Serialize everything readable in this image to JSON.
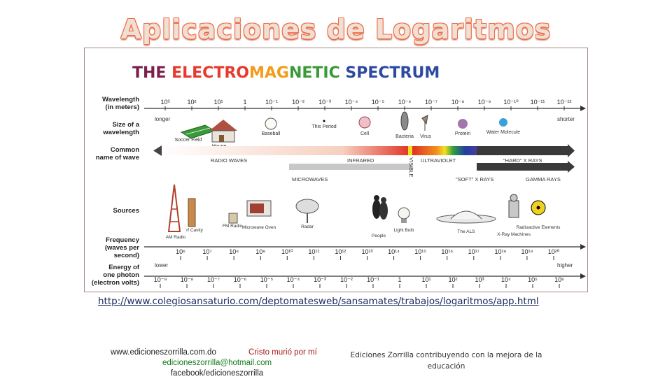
{
  "slide": {
    "title": "Aplicaciones de Logaritmos",
    "link_text": "http://www.colegiosansaturio.com/deptomatesweb/sansamates/trabajos/logaritmos/app.html"
  },
  "spectrum": {
    "heading_parts": [
      {
        "text": "THE ",
        "color": "#7b1f4c"
      },
      {
        "text": "ELECTRO",
        "color": "#e53a2e"
      },
      {
        "text": "MAG",
        "color": "#f29c1a"
      },
      {
        "text": "NETIC ",
        "color": "#3a9a3a"
      },
      {
        "text": "SPECTRUM",
        "color": "#2d4aa0"
      }
    ],
    "row_labels": {
      "wavelength": [
        "Wavelength",
        "(in meters)"
      ],
      "size": [
        "Size of a",
        "wavelength"
      ],
      "common": [
        "Common",
        "name of wave"
      ],
      "sources": [
        "Sources"
      ],
      "frequency": [
        "Frequency",
        "(waves per",
        "second)"
      ],
      "energy": [
        "Energy of",
        "one photon",
        "(electron volts)"
      ]
    },
    "wavelength_ticks": [
      "10³",
      "10²",
      "10¹",
      "1",
      "10⁻¹",
      "10⁻²",
      "10⁻³",
      "10⁻⁴",
      "10⁻⁵",
      "10⁻⁶",
      "10⁻⁷",
      "10⁻⁸",
      "10⁻⁹",
      "10⁻¹⁰",
      "10⁻¹¹",
      "10⁻¹²"
    ],
    "size_labels": {
      "longer": "longer",
      "shorter": "shorter"
    },
    "size_objects": [
      "Soccer Field",
      "House",
      "Baseball",
      "This Period",
      "Cell",
      "Bacteria",
      "Virus",
      "Protein",
      "Water Molecule"
    ],
    "wave_names": {
      "radio": "RADIO WAVES",
      "infrared": "INFRARED",
      "visible": "VISIBLE",
      "ultraviolet": "ULTRAVIOLET",
      "hard_xrays": "\"HARD\" X RAYS",
      "microwaves": "MICROWAVES",
      "soft_xrays": "\"SOFT\" X RAYS",
      "gamma": "GAMMA RAYS"
    },
    "sources": [
      "AM Radio",
      "rf Cavity",
      "FM Radio",
      "Microwave Oven",
      "Radar",
      "People",
      "Light Bulb",
      "The ALS",
      "X-Ray Machines",
      "Radioactive Elements"
    ],
    "frequency_ticks": [
      "10⁶",
      "10⁷",
      "10⁸",
      "10⁹",
      "10¹⁰",
      "10¹¹",
      "10¹²",
      "10¹³",
      "10¹⁴",
      "10¹⁵",
      "10¹⁶",
      "10¹⁷",
      "10¹⁸",
      "10¹⁹",
      "10²⁰"
    ],
    "energy_labels": {
      "lower": "lower",
      "higher": "higher"
    },
    "energy_ticks": [
      "10⁻⁹",
      "10⁻⁸",
      "10⁻⁷",
      "10⁻⁶",
      "10⁻⁵",
      "10⁻⁴",
      "10⁻³",
      "10⁻²",
      "10⁻¹",
      "1",
      "10¹",
      "10²",
      "10³",
      "10⁴",
      "10⁵",
      "10⁶"
    ]
  },
  "footer": {
    "site": "www.edicioneszorrilla.com.do",
    "motto": "Cristo murió por mí",
    "email": "edicioneszorrilla@hotmail.com",
    "facebook": "facebook/edicioneszorrilla",
    "tagline_line1": "Ediciones Zorrilla contribuyendo con la mejora de la",
    "tagline_line2": "educación"
  },
  "colors": {
    "title": "#f26a45",
    "link": "#1c2b60",
    "email": "#137a1a",
    "motto": "#a81818"
  }
}
